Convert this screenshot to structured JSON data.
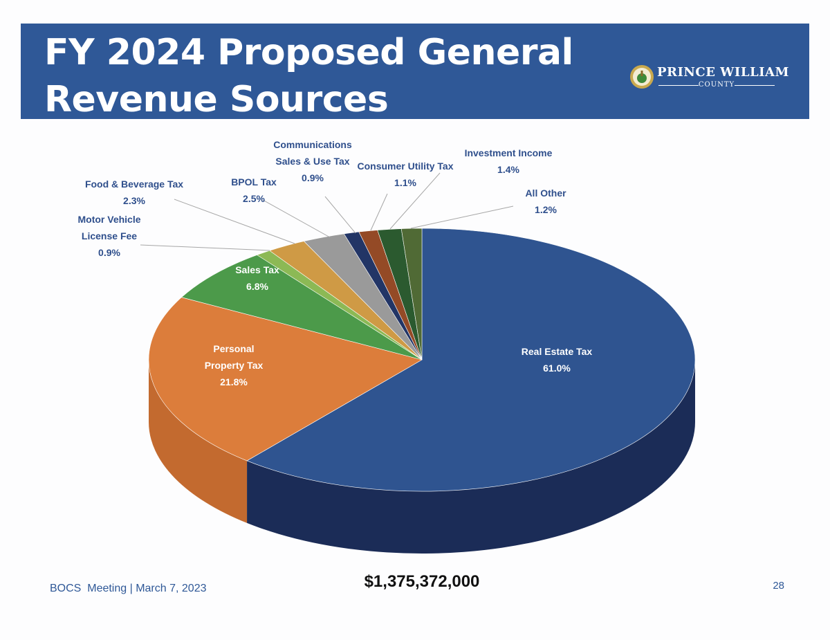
{
  "slide": {
    "title_line1": "FY 2024 Proposed General",
    "title_line2": "Revenue Sources",
    "logo": {
      "name": "PRINCE WILLIAM",
      "sub": "COUNTY"
    },
    "footer": "BOCS  Meeting | March 7, 2023",
    "total": "$1,375,372,000",
    "page_number": "28",
    "colors": {
      "header": "#2f5897",
      "footer_text": "#2f5897"
    }
  },
  "chart_data": {
    "type": "pie",
    "title": "FY 2024 Proposed General Revenue Sources",
    "total": "$1,375,372,000",
    "slices": [
      {
        "lines": [
          "Real Estate Tax"
        ],
        "pct_label": "61.0%",
        "value": 61.0,
        "color": "#2f5490",
        "side": "#1b2c57"
      },
      {
        "lines": [
          "Personal",
          "Property Tax"
        ],
        "pct_label": "21.8%",
        "value": 21.8,
        "color": "#dc7d3b",
        "side": "#c36a2f"
      },
      {
        "lines": [
          "Sales Tax"
        ],
        "pct_label": "6.8%",
        "value": 6.8,
        "color": "#4c9a4a",
        "side": "#3a7a38"
      },
      {
        "lines": [
          "Motor Vehicle",
          "License Fee"
        ],
        "pct_label": "0.9%",
        "value": 0.9,
        "color": "#8cb955",
        "side": "#6e9440"
      },
      {
        "lines": [
          "Food & Beverage Tax"
        ],
        "pct_label": "2.3%",
        "value": 2.3,
        "color": "#cf9a45",
        "side": "#a67a33"
      },
      {
        "lines": [
          "BPOL Tax"
        ],
        "pct_label": "2.5%",
        "value": 2.5,
        "color": "#9a9a9a",
        "side": "#777777"
      },
      {
        "lines": [
          "Communications",
          "Sales & Use Tax"
        ],
        "pct_label": "0.9%",
        "value": 0.9,
        "color": "#223566",
        "side": "#162448"
      },
      {
        "lines": [
          "Consumer Utility Tax"
        ],
        "pct_label": "1.1%",
        "value": 1.1,
        "color": "#944a26",
        "side": "#6e361b"
      },
      {
        "lines": [
          "Investment Income"
        ],
        "pct_label": "1.4%",
        "value": 1.4,
        "color": "#2b5a2f",
        "side": "#1e4221"
      },
      {
        "lines": [
          "All Other"
        ],
        "pct_label": "1.2%",
        "value": 1.2,
        "color": "#506a35",
        "side": "#3a4e26"
      }
    ]
  }
}
